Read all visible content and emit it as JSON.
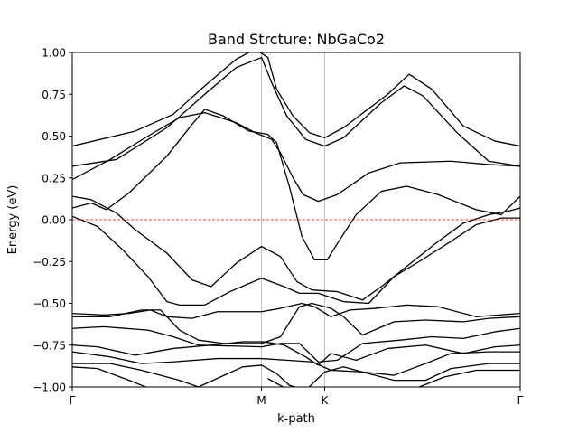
{
  "chart_data": {
    "type": "line",
    "title": "Band Strcture: NbGaCo2",
    "xlabel": "k-path",
    "ylabel": "Energy (eV)",
    "xlim": [
      0,
      3.55
    ],
    "ylim": [
      -1.0,
      1.0
    ],
    "yticks": [
      -1.0,
      -0.75,
      -0.5,
      -0.25,
      0.0,
      0.25,
      0.5,
      0.75,
      1.0
    ],
    "ytick_labels": [
      "−1.00",
      "−0.75",
      "−0.50",
      "−0.25",
      "0.00",
      "0.25",
      "0.50",
      "0.75",
      "1.00"
    ],
    "kpoints": [
      {
        "label": "Γ",
        "x": 0.0
      },
      {
        "label": "M",
        "x": 1.5
      },
      {
        "label": "K",
        "x": 2.0
      },
      {
        "label": "Γ",
        "x": 3.55
      }
    ],
    "fermi_level": 0.0,
    "fermi_color": "#ff0000",
    "band_color": "#000000",
    "vline_color": "#b0b0b0",
    "series": [
      {
        "points": [
          [
            0.0,
            0.44
          ],
          [
            0.5,
            0.53
          ],
          [
            0.8,
            0.63
          ],
          [
            1.05,
            0.8
          ],
          [
            1.3,
            0.96
          ],
          [
            1.45,
            1.02
          ],
          [
            1.55,
            0.97
          ],
          [
            1.62,
            0.78
          ],
          [
            1.75,
            0.62
          ],
          [
            1.88,
            0.52
          ],
          [
            2.0,
            0.49
          ],
          [
            2.15,
            0.55
          ],
          [
            2.5,
            0.75
          ],
          [
            2.67,
            0.87
          ],
          [
            2.85,
            0.78
          ],
          [
            3.1,
            0.56
          ],
          [
            3.35,
            0.47
          ],
          [
            3.55,
            0.44
          ]
        ]
      },
      {
        "points": [
          [
            0.0,
            0.32
          ],
          [
            0.35,
            0.36
          ],
          [
            0.75,
            0.55
          ],
          [
            1.05,
            0.75
          ],
          [
            1.3,
            0.91
          ],
          [
            1.5,
            0.97
          ],
          [
            1.58,
            0.82
          ],
          [
            1.7,
            0.62
          ],
          [
            1.85,
            0.48
          ],
          [
            2.0,
            0.44
          ],
          [
            2.15,
            0.49
          ],
          [
            2.45,
            0.7
          ],
          [
            2.63,
            0.8
          ],
          [
            2.78,
            0.74
          ],
          [
            3.05,
            0.52
          ],
          [
            3.3,
            0.35
          ],
          [
            3.55,
            0.32
          ]
        ]
      },
      {
        "points": [
          [
            0.0,
            0.24
          ],
          [
            0.3,
            0.36
          ],
          [
            0.6,
            0.5
          ],
          [
            0.85,
            0.61
          ],
          [
            1.05,
            0.64
          ],
          [
            1.3,
            0.58
          ],
          [
            1.45,
            0.52
          ],
          [
            1.58,
            0.48
          ],
          [
            1.65,
            0.4
          ],
          [
            1.75,
            0.25
          ],
          [
            1.83,
            0.15
          ],
          [
            1.95,
            0.11
          ],
          [
            2.1,
            0.15
          ],
          [
            2.35,
            0.28
          ],
          [
            2.6,
            0.34
          ],
          [
            3.0,
            0.35
          ],
          [
            3.3,
            0.33
          ],
          [
            3.55,
            0.32
          ]
        ]
      },
      {
        "points": [
          [
            0.0,
            0.07
          ],
          [
            0.15,
            0.1
          ],
          [
            0.27,
            0.06
          ],
          [
            0.45,
            0.16
          ],
          [
            0.75,
            0.38
          ],
          [
            0.95,
            0.57
          ],
          [
            1.05,
            0.66
          ],
          [
            1.2,
            0.62
          ],
          [
            1.4,
            0.53
          ],
          [
            1.55,
            0.51
          ],
          [
            1.62,
            0.46
          ],
          [
            1.72,
            0.2
          ],
          [
            1.82,
            -0.1
          ],
          [
            1.92,
            -0.24
          ],
          [
            2.02,
            -0.24
          ],
          [
            2.12,
            -0.12
          ],
          [
            2.25,
            0.03
          ],
          [
            2.45,
            0.17
          ],
          [
            2.65,
            0.2
          ],
          [
            2.9,
            0.15
          ],
          [
            3.2,
            0.06
          ],
          [
            3.4,
            0.03
          ],
          [
            3.55,
            0.14
          ]
        ]
      },
      {
        "points": [
          [
            0.0,
            0.14
          ],
          [
            0.15,
            0.12
          ],
          [
            0.25,
            0.08
          ],
          [
            0.35,
            0.04
          ],
          [
            0.5,
            -0.06
          ],
          [
            0.75,
            -0.2
          ],
          [
            0.95,
            -0.36
          ],
          [
            1.1,
            -0.4
          ],
          [
            1.3,
            -0.26
          ],
          [
            1.5,
            -0.16
          ],
          [
            1.65,
            -0.22
          ],
          [
            1.78,
            -0.37
          ],
          [
            1.9,
            -0.42
          ],
          [
            2.1,
            -0.43
          ],
          [
            2.3,
            -0.48
          ],
          [
            2.45,
            -0.4
          ],
          [
            2.65,
            -0.28
          ],
          [
            2.9,
            -0.13
          ],
          [
            3.1,
            -0.02
          ],
          [
            3.3,
            0.03
          ],
          [
            3.45,
            0.05
          ],
          [
            3.55,
            0.07
          ]
        ]
      },
      {
        "points": [
          [
            0.0,
            0.02
          ],
          [
            0.2,
            -0.04
          ],
          [
            0.4,
            -0.18
          ],
          [
            0.6,
            -0.34
          ],
          [
            0.75,
            -0.49
          ],
          [
            0.85,
            -0.51
          ],
          [
            1.05,
            -0.51
          ],
          [
            1.25,
            -0.43
          ],
          [
            1.5,
            -0.35
          ],
          [
            1.68,
            -0.4
          ],
          [
            1.8,
            -0.44
          ],
          [
            1.95,
            -0.44
          ],
          [
            2.15,
            -0.49
          ],
          [
            2.35,
            -0.5
          ],
          [
            2.55,
            -0.34
          ],
          [
            2.75,
            -0.25
          ],
          [
            3.0,
            -0.13
          ],
          [
            3.2,
            -0.03
          ],
          [
            3.4,
            0.01
          ],
          [
            3.55,
            0.01
          ]
        ]
      },
      {
        "points": [
          [
            0.0,
            -0.56
          ],
          [
            0.25,
            -0.57
          ],
          [
            0.45,
            -0.56
          ],
          [
            0.62,
            -0.54
          ],
          [
            0.75,
            -0.58
          ],
          [
            0.95,
            -0.59
          ],
          [
            1.15,
            -0.55
          ],
          [
            1.5,
            -0.55
          ],
          [
            1.65,
            -0.53
          ],
          [
            1.82,
            -0.5
          ],
          [
            1.92,
            -0.52
          ],
          [
            2.05,
            -0.58
          ],
          [
            2.2,
            -0.54
          ],
          [
            2.4,
            -0.53
          ],
          [
            2.65,
            -0.51
          ],
          [
            2.9,
            -0.52
          ],
          [
            3.2,
            -0.58
          ],
          [
            3.55,
            -0.56
          ]
        ]
      },
      {
        "points": [
          [
            0.0,
            -0.58
          ],
          [
            0.3,
            -0.58
          ],
          [
            0.55,
            -0.54
          ],
          [
            0.7,
            -0.54
          ],
          [
            0.85,
            -0.66
          ],
          [
            1.0,
            -0.72
          ],
          [
            1.2,
            -0.74
          ],
          [
            1.5,
            -0.74
          ],
          [
            1.65,
            -0.7
          ],
          [
            1.8,
            -0.52
          ],
          [
            1.9,
            -0.5
          ],
          [
            2.05,
            -0.53
          ],
          [
            2.15,
            -0.58
          ],
          [
            2.3,
            -0.69
          ],
          [
            2.55,
            -0.61
          ],
          [
            2.8,
            -0.6
          ],
          [
            3.1,
            -0.61
          ],
          [
            3.3,
            -0.59
          ],
          [
            3.55,
            -0.58
          ]
        ]
      },
      {
        "points": [
          [
            0.0,
            -0.65
          ],
          [
            0.25,
            -0.64
          ],
          [
            0.6,
            -0.66
          ],
          [
            0.8,
            -0.7
          ],
          [
            1.0,
            -0.75
          ],
          [
            1.5,
            -0.76
          ],
          [
            1.65,
            -0.74
          ],
          [
            1.8,
            -0.74
          ],
          [
            1.95,
            -0.85
          ],
          [
            2.1,
            -0.84
          ],
          [
            2.3,
            -0.74
          ],
          [
            2.6,
            -0.72
          ],
          [
            2.85,
            -0.7
          ],
          [
            3.1,
            -0.71
          ],
          [
            3.35,
            -0.67
          ],
          [
            3.55,
            -0.65
          ]
        ]
      },
      {
        "points": [
          [
            0.0,
            -0.75
          ],
          [
            0.2,
            -0.76
          ],
          [
            0.5,
            -0.81
          ],
          [
            0.8,
            -0.77
          ],
          [
            1.1,
            -0.75
          ],
          [
            1.35,
            -0.73
          ],
          [
            1.52,
            -0.73
          ],
          [
            1.68,
            -0.75
          ],
          [
            1.85,
            -0.82
          ],
          [
            1.95,
            -0.87
          ],
          [
            2.05,
            -0.8
          ],
          [
            2.25,
            -0.84
          ],
          [
            2.5,
            -0.77
          ],
          [
            2.8,
            -0.75
          ],
          [
            3.1,
            -0.8
          ],
          [
            3.35,
            -0.76
          ],
          [
            3.55,
            -0.75
          ]
        ]
      },
      {
        "points": [
          [
            0.0,
            -0.79
          ],
          [
            0.3,
            -0.82
          ],
          [
            0.55,
            -0.86
          ],
          [
            0.8,
            -0.85
          ],
          [
            1.15,
            -0.83
          ],
          [
            1.5,
            -0.83
          ],
          [
            1.7,
            -0.84
          ],
          [
            1.9,
            -0.85
          ],
          [
            2.05,
            -0.9
          ],
          [
            2.3,
            -0.91
          ],
          [
            2.55,
            -0.93
          ],
          [
            2.8,
            -0.86
          ],
          [
            3.0,
            -0.8
          ],
          [
            3.3,
            -0.79
          ],
          [
            3.55,
            -0.79
          ]
        ]
      },
      {
        "points": [
          [
            0.0,
            -0.86
          ],
          [
            0.3,
            -0.86
          ],
          [
            0.55,
            -0.9
          ],
          [
            0.85,
            -0.96
          ],
          [
            1.0,
            -1.0
          ],
          [
            1.35,
            -0.88
          ],
          [
            1.5,
            -0.87
          ],
          [
            1.62,
            -0.92
          ],
          [
            1.72,
            -0.99
          ],
          [
            1.85,
            -1.02
          ],
          [
            2.0,
            -0.91
          ],
          [
            2.15,
            -0.88
          ],
          [
            2.35,
            -0.92
          ],
          [
            2.55,
            -0.96
          ],
          [
            2.8,
            -0.96
          ],
          [
            3.0,
            -0.89
          ],
          [
            3.3,
            -0.86
          ],
          [
            3.55,
            -0.86
          ]
        ]
      },
      {
        "points": [
          [
            0.0,
            -0.88
          ],
          [
            0.2,
            -0.89
          ],
          [
            0.45,
            -0.96
          ],
          [
            0.65,
            -1.02
          ]
        ]
      },
      {
        "points": [
          [
            1.55,
            -0.95
          ],
          [
            1.72,
            -1.02
          ]
        ]
      },
      {
        "points": [
          [
            2.05,
            -1.0
          ],
          [
            2.25,
            -1.02
          ]
        ]
      },
      {
        "points": [
          [
            2.5,
            -1.02
          ],
          [
            2.75,
            -1.0
          ],
          [
            2.95,
            -0.94
          ],
          [
            3.2,
            -0.9
          ],
          [
            3.55,
            -0.9
          ]
        ]
      }
    ]
  }
}
